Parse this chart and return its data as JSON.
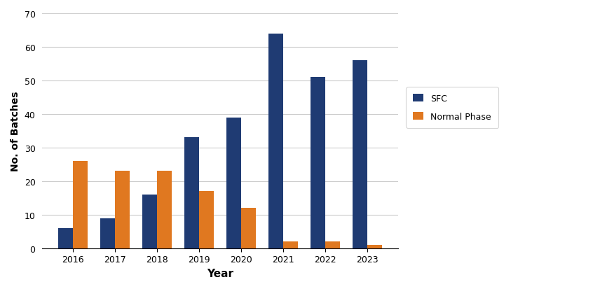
{
  "years": [
    "2016",
    "2017",
    "2018",
    "2019",
    "2020",
    "2021",
    "2022",
    "2023"
  ],
  "sfc_values": [
    6,
    9,
    16,
    33,
    39,
    64,
    51,
    56
  ],
  "nplc_values": [
    26,
    23,
    23,
    17,
    12,
    2,
    2,
    1
  ],
  "sfc_color": "#1F3B73",
  "nplc_color": "#E07820",
  "xlabel": "Year",
  "ylabel": "No. of Batches",
  "ylim": [
    0,
    70
  ],
  "yticks": [
    0,
    10,
    20,
    30,
    40,
    50,
    60,
    70
  ],
  "legend_sfc": "SFC",
  "legend_nplc": "Normal Phase",
  "background_color": "#FFFFFF",
  "grid_color": "#CCCCCC",
  "border_color": "#A8C4D4",
  "bar_width": 0.35
}
